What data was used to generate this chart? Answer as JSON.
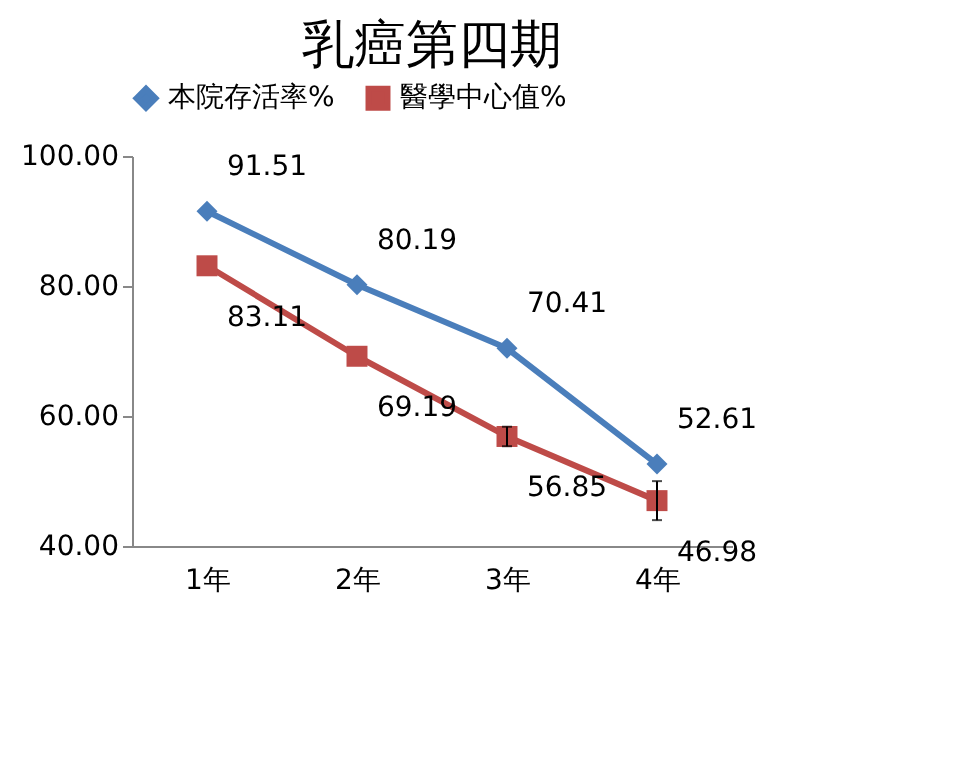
{
  "chart_data": {
    "type": "line",
    "title": "乳癌第四期",
    "categories": [
      "1年",
      "2年",
      "3年",
      "4年"
    ],
    "series": [
      {
        "name": "本院存活率%",
        "color": "#4a7ebb",
        "marker": "diamond",
        "values": [
          91.51,
          80.19,
          70.41,
          52.61
        ]
      },
      {
        "name": "醫學中心值%",
        "color": "#be4b48",
        "marker": "square",
        "values": [
          83.11,
          69.19,
          56.85,
          46.98
        ],
        "errors": [
          null,
          null,
          1.5,
          3
        ]
      }
    ],
    "ylim": [
      40,
      100
    ],
    "yticks": [
      {
        "value": 40,
        "label": "40.00"
      },
      {
        "value": 60,
        "label": "60.00"
      },
      {
        "value": 80,
        "label": "80.00"
      },
      {
        "value": 100,
        "label": "100.00"
      }
    ],
    "grid": false,
    "legend": "top",
    "data_labels": true,
    "line_style": "solid"
  }
}
